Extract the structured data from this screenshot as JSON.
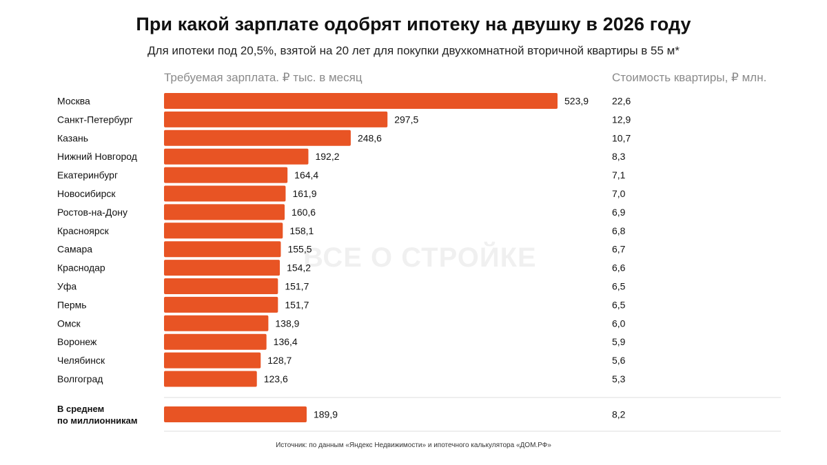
{
  "title": "При какой зарплате одобрят ипотеку на двушку в 2026 году",
  "subtitle": "Для ипотеки под 20,5%, взятой на 20 лет для покупки двухкомнатной вторичной квартиры в 55 м*",
  "watermark": "ВСЕ О СТРОЙКЕ",
  "footer": "Источник: по данным «Яндекс Недвижимости» и ипотечного калькулятора «ДОМ.РФ»",
  "colors": {
    "bar": "#e85424",
    "divider": "#dddddd"
  },
  "chart_data": {
    "type": "bar",
    "orientation": "horizontal",
    "xlabel": "Требуемая зарплата. ₽ тыс. в месяц",
    "secondary_column_label": "Стоимость квартиры, ₽ млн.",
    "categories": [
      "Москва",
      "Санкт-Петербург",
      "Казань",
      "Нижний Новгород",
      "Екатеринбург",
      "Новосибирск",
      "Ростов-на-Дону",
      "Красноярск",
      "Самара",
      "Краснодар",
      "Уфа",
      "Пермь",
      "Омск",
      "Воронеж",
      "Челябинск",
      "Волгоград"
    ],
    "values": [
      523.9,
      297.5,
      248.6,
      192.2,
      164.4,
      161.9,
      160.6,
      158.1,
      155.5,
      154.2,
      151.7,
      151.7,
      138.9,
      136.4,
      128.7,
      123.6
    ],
    "value_labels": [
      "523,9",
      "297,5",
      "248,6",
      "192,2",
      "164,4",
      "161,9",
      "160,6",
      "158,1",
      "155,5",
      "154,2",
      "151,7",
      "151,7",
      "138,9",
      "136,4",
      "128,7",
      "123,6"
    ],
    "apartment_prices": [
      "22,6",
      "12,9",
      "10,7",
      "8,3",
      "7,1",
      "7,0",
      "6,9",
      "6,8",
      "6,7",
      "6,6",
      "6,5",
      "6,5",
      "6,0",
      "5,9",
      "5,6",
      "5,3"
    ],
    "average": {
      "label_lines": [
        "В среднем",
        "по миллионникам"
      ],
      "value": 189.9,
      "value_label": "189,9",
      "apartment_price": "8,2"
    },
    "xlim": [
      0,
      523.9
    ],
    "grid": false,
    "legend": "none"
  }
}
